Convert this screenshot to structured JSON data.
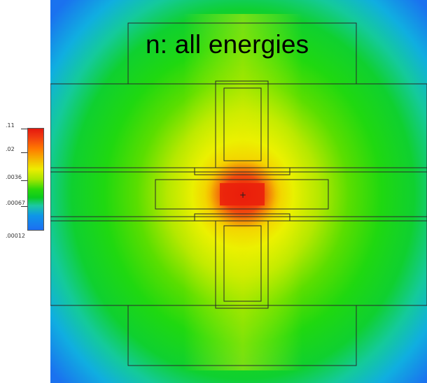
{
  "title": "n: all energies",
  "colorbar": {
    "ticks": [
      ".11",
      ".02",
      ".0036",
      ".00067",
      ".00012"
    ]
  },
  "source_marker": "+"
}
